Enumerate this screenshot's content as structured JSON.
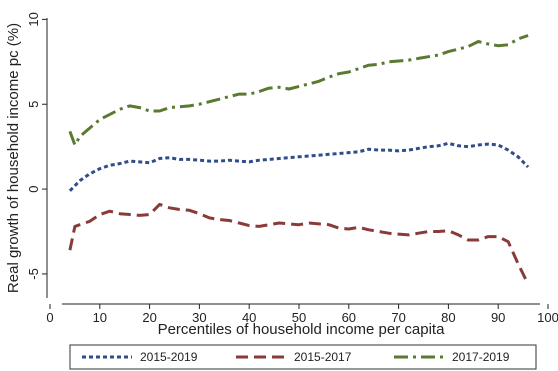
{
  "chart_data": {
    "type": "line",
    "xlabel": "Percentiles of household income per capita",
    "ylabel": "Real growth of household income pc (%)",
    "xlim": [
      0,
      100
    ],
    "ylim": [
      -6.3,
      10.2
    ],
    "x_ticks": [
      0,
      10,
      20,
      30,
      40,
      50,
      60,
      70,
      80,
      90,
      100
    ],
    "y_ticks": [
      -5,
      0,
      5,
      10
    ],
    "y_tick_labels": [
      "-5",
      "0",
      "5",
      "10"
    ],
    "grid": false,
    "legend_position": "bottom",
    "series": [
      {
        "name": "2015-2019",
        "color": "#2e4d8a",
        "dash": "dotted",
        "x": [
          4,
          6,
          8,
          10,
          12,
          14,
          16,
          18,
          20,
          22,
          24,
          26,
          28,
          30,
          32,
          34,
          36,
          38,
          40,
          42,
          44,
          46,
          48,
          50,
          52,
          54,
          56,
          58,
          60,
          62,
          64,
          66,
          68,
          70,
          72,
          74,
          76,
          78,
          80,
          82,
          84,
          86,
          88,
          90,
          92,
          94,
          96
        ],
        "y": [
          -0.1,
          0.5,
          0.9,
          1.2,
          1.4,
          1.5,
          1.65,
          1.6,
          1.55,
          1.8,
          1.85,
          1.75,
          1.75,
          1.7,
          1.65,
          1.65,
          1.7,
          1.65,
          1.6,
          1.7,
          1.75,
          1.8,
          1.85,
          1.9,
          1.95,
          2.0,
          2.05,
          2.1,
          2.15,
          2.2,
          2.35,
          2.3,
          2.3,
          2.25,
          2.3,
          2.4,
          2.5,
          2.55,
          2.7,
          2.55,
          2.5,
          2.6,
          2.65,
          2.6,
          2.3,
          1.9,
          1.3
        ]
      },
      {
        "name": "2015-2017",
        "color": "#8b3a3a",
        "dash": "dashed",
        "x": [
          4,
          5,
          6,
          8,
          10,
          12,
          14,
          16,
          18,
          20,
          22,
          24,
          26,
          28,
          30,
          32,
          34,
          36,
          38,
          40,
          42,
          44,
          46,
          48,
          50,
          52,
          54,
          56,
          58,
          60,
          62,
          64,
          66,
          68,
          70,
          72,
          74,
          76,
          78,
          80,
          82,
          84,
          86,
          88,
          90,
          92,
          94,
          96
        ],
        "y": [
          -3.6,
          -2.2,
          -2.1,
          -1.9,
          -1.5,
          -1.3,
          -1.45,
          -1.5,
          -1.55,
          -1.5,
          -0.9,
          -1.1,
          -1.2,
          -1.25,
          -1.45,
          -1.7,
          -1.8,
          -1.85,
          -2.0,
          -2.15,
          -2.2,
          -2.1,
          -2.0,
          -2.05,
          -2.1,
          -2.0,
          -2.05,
          -2.1,
          -2.3,
          -2.35,
          -2.25,
          -2.4,
          -2.5,
          -2.6,
          -2.65,
          -2.7,
          -2.6,
          -2.5,
          -2.5,
          -2.45,
          -2.7,
          -3.0,
          -3.0,
          -2.8,
          -2.8,
          -3.1,
          -4.4,
          -5.6
        ]
      },
      {
        "name": "2017-2019",
        "color": "#5a7a32",
        "dash": "dashdot",
        "x": [
          4,
          5,
          6,
          8,
          10,
          12,
          14,
          16,
          18,
          20,
          22,
          24,
          26,
          28,
          30,
          32,
          34,
          36,
          38,
          40,
          42,
          44,
          46,
          48,
          50,
          52,
          54,
          56,
          58,
          60,
          62,
          64,
          66,
          68,
          70,
          72,
          74,
          76,
          78,
          80,
          82,
          84,
          86,
          88,
          90,
          92,
          94,
          96
        ],
        "y": [
          3.4,
          2.6,
          3.1,
          3.6,
          4.1,
          4.4,
          4.7,
          4.9,
          4.8,
          4.6,
          4.6,
          4.8,
          4.85,
          4.9,
          5.0,
          5.15,
          5.3,
          5.45,
          5.6,
          5.6,
          5.75,
          5.95,
          6.0,
          5.9,
          6.05,
          6.2,
          6.35,
          6.6,
          6.8,
          6.9,
          7.1,
          7.3,
          7.35,
          7.5,
          7.55,
          7.6,
          7.7,
          7.8,
          7.9,
          8.1,
          8.25,
          8.4,
          8.7,
          8.55,
          8.45,
          8.5,
          8.85,
          9.05
        ]
      }
    ]
  }
}
